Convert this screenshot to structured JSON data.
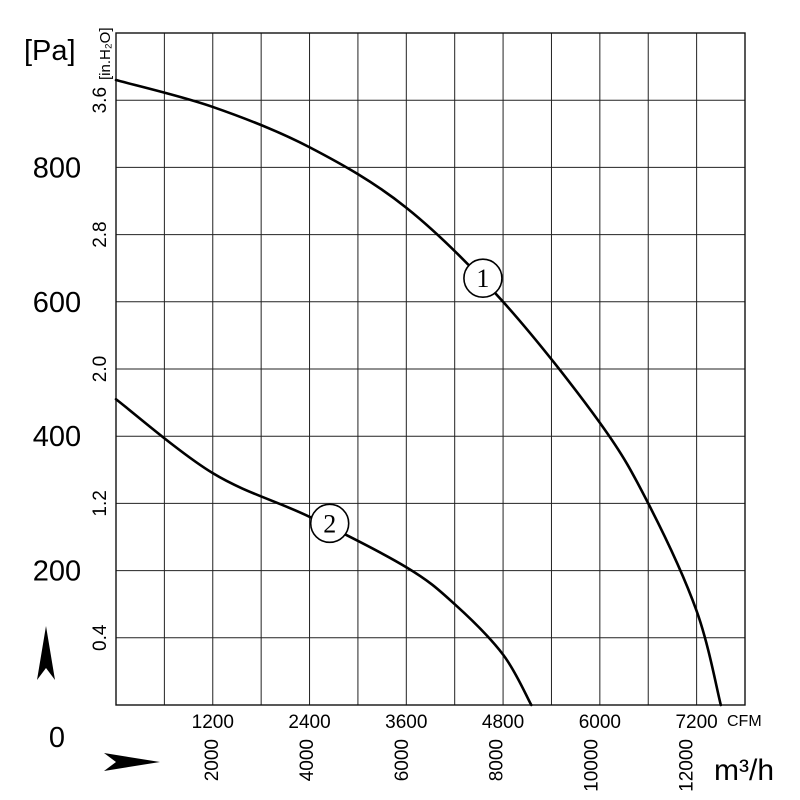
{
  "chart_data": {
    "type": "line",
    "title": "",
    "grid": true,
    "y_axis_pa": {
      "unit_label": "[Pa]",
      "ticks": [
        "0",
        "200",
        "400",
        "600",
        "800"
      ],
      "range": [
        0,
        1000
      ]
    },
    "y_axis_inh2o": {
      "unit_label": "[in.H₂O]",
      "ticks": [
        "0.4",
        "1.2",
        "2.0",
        "2.8",
        "3.6"
      ]
    },
    "x_axis_cfm": {
      "unit_label": "CFM",
      "ticks": [
        "1200",
        "2400",
        "3600",
        "4800",
        "6000",
        "7200"
      ],
      "range": [
        0,
        7800
      ]
    },
    "x_axis_m3h": {
      "unit_label": "m³/h",
      "ticks": [
        "2000",
        "4000",
        "6000",
        "8000",
        "10000",
        "12000"
      ]
    },
    "series": [
      {
        "marker": "1",
        "x_cfm": [
          0,
          1200,
          2400,
          3600,
          4800,
          6000,
          6600,
          7200,
          7500
        ],
        "y_pa": [
          930,
          890,
          830,
          740,
          600,
          420,
          300,
          140,
          0
        ]
      },
      {
        "marker": "2",
        "x_cfm": [
          0,
          1200,
          2400,
          3600,
          4200,
          4800,
          5150
        ],
        "y_pa": [
          455,
          345,
          280,
          205,
          150,
          75,
          0
        ]
      }
    ]
  }
}
